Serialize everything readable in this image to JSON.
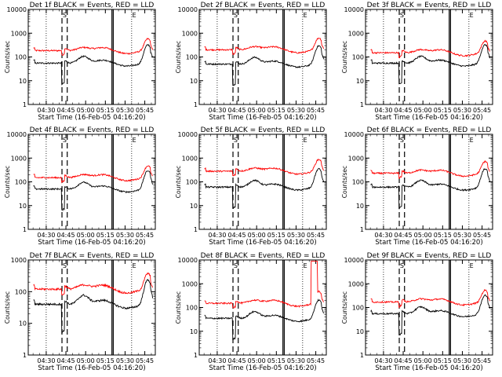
{
  "chart_data": [
    {
      "type": "line",
      "title": "Det 1f BLACK = Events, RED = LLD",
      "xlabel": "Start Time (16-Feb-05 04:16:20)",
      "ylabel": "Counts/sec",
      "yscale": "log",
      "ylim": [
        1,
        10000
      ],
      "y_ticks": [
        "1",
        "10",
        "100",
        "1000",
        "10000"
      ],
      "xlim": [
        "04:16:20",
        "05:53:00"
      ],
      "x_ticks": [
        "04:30",
        "04:45",
        "05:00",
        "05:15",
        "05:30",
        "05:45"
      ],
      "markers": {
        "dotted": [
          "04:30",
          "05:35"
        ],
        "dashed": [
          "04:42",
          "04:46"
        ],
        "solid": [
          "05:20",
          "05:21"
        ]
      },
      "letters": [
        {
          "text": "S",
          "at": "04:44"
        },
        {
          "text": "E",
          "at": "05:37"
        }
      ],
      "series": [
        {
          "color": "#ff0000",
          "kind": "lld",
          "base": 185,
          "spike": false
        },
        {
          "color": "#000000",
          "kind": "events",
          "base": 55,
          "spike": false
        }
      ]
    },
    {
      "type": "line",
      "title": "Det 2f BLACK = Events, RED = LLD",
      "xlabel": "Start Time (16-Feb-05 04:16:20)",
      "ylabel": "Counts/sec",
      "yscale": "log",
      "ylim": [
        1,
        10000
      ],
      "y_ticks": [
        "1",
        "10",
        "100",
        "1000",
        "10000"
      ],
      "xlim": [
        "04:16:20",
        "05:53:00"
      ],
      "x_ticks": [
        "04:30",
        "04:45",
        "05:00",
        "05:15",
        "05:30",
        "05:45"
      ],
      "markers": {
        "dotted": [
          "04:30",
          "05:35"
        ],
        "dashed": [
          "04:42",
          "04:46"
        ],
        "solid": [
          "05:20",
          "05:21"
        ]
      },
      "letters": [
        {
          "text": "S",
          "at": "04:44"
        },
        {
          "text": "E",
          "at": "05:37"
        }
      ],
      "series": [
        {
          "color": "#ff0000",
          "kind": "lld",
          "base": 200,
          "spike": false
        },
        {
          "color": "#000000",
          "kind": "events",
          "base": 50,
          "spike": false
        }
      ]
    },
    {
      "type": "line",
      "title": "Det 3f BLACK = Events, RED = LLD",
      "xlabel": "Start Time (16-Feb-05 04:16:20)",
      "ylabel": "Counts/sec",
      "yscale": "log",
      "ylim": [
        1,
        10000
      ],
      "y_ticks": [
        "1",
        "10",
        "100",
        "1000",
        "10000"
      ],
      "xlim": [
        "04:16:20",
        "05:53:00"
      ],
      "x_ticks": [
        "04:30",
        "04:45",
        "05:00",
        "05:15",
        "05:30",
        "05:45"
      ],
      "markers": {
        "dotted": [
          "04:30",
          "05:35"
        ],
        "dashed": [
          "04:42",
          "04:46"
        ],
        "solid": [
          "05:20",
          "05:21"
        ]
      },
      "letters": [
        {
          "text": "S",
          "at": "04:44"
        },
        {
          "text": "E",
          "at": "05:37"
        }
      ],
      "series": [
        {
          "color": "#ff0000",
          "kind": "lld",
          "base": 150,
          "spike": false
        },
        {
          "color": "#000000",
          "kind": "events",
          "base": 55,
          "spike": false
        }
      ]
    },
    {
      "type": "line",
      "title": "Det 4f BLACK = Events, RED = LLD",
      "xlabel": "Start Time (16-Feb-05 04:16:20)",
      "ylabel": "Counts/sec",
      "yscale": "log",
      "ylim": [
        1,
        10000
      ],
      "y_ticks": [
        "1",
        "10",
        "100",
        "1000",
        "10000"
      ],
      "xlim": [
        "04:16:20",
        "05:53:00"
      ],
      "x_ticks": [
        "04:30",
        "04:45",
        "05:00",
        "05:15",
        "05:30",
        "05:45"
      ],
      "markers": {
        "dotted": [
          "04:30",
          "05:35"
        ],
        "dashed": [
          "04:42",
          "04:46"
        ],
        "solid": [
          "05:20",
          "05:21"
        ]
      },
      "letters": [
        {
          "text": "S",
          "at": "04:44"
        },
        {
          "text": "E",
          "at": "05:37"
        }
      ],
      "series": [
        {
          "color": "#ff0000",
          "kind": "lld",
          "base": 150,
          "spike": false
        },
        {
          "color": "#000000",
          "kind": "events",
          "base": 50,
          "spike": false
        }
      ]
    },
    {
      "type": "line",
      "title": "Det 5f BLACK = Events, RED = LLD",
      "xlabel": "Start Time (16-Feb-05 04:16:20)",
      "ylabel": "Counts/sec",
      "yscale": "log",
      "ylim": [
        1,
        10000
      ],
      "y_ticks": [
        "1",
        "10",
        "100",
        "1000",
        "10000"
      ],
      "xlim": [
        "04:16:20",
        "05:53:00"
      ],
      "x_ticks": [
        "04:30",
        "04:45",
        "05:00",
        "05:15",
        "05:30",
        "05:45"
      ],
      "markers": {
        "dotted": [
          "04:30",
          "05:35"
        ],
        "dashed": [
          "04:42",
          "04:46"
        ],
        "solid": [
          "05:20",
          "05:21"
        ]
      },
      "letters": [
        {
          "text": "S",
          "at": "04:44"
        },
        {
          "text": "E",
          "at": "05:37"
        }
      ],
      "series": [
        {
          "color": "#ff0000",
          "kind": "lld",
          "base": 280,
          "spike": false
        },
        {
          "color": "#000000",
          "kind": "events",
          "base": 60,
          "spike": false
        }
      ]
    },
    {
      "type": "line",
      "title": "Det 6f BLACK = Events, RED = LLD",
      "xlabel": "Start Time (16-Feb-05 04:16:20)",
      "ylabel": "Counts/sec",
      "yscale": "log",
      "ylim": [
        1,
        10000
      ],
      "y_ticks": [
        "1",
        "10",
        "100",
        "1000",
        "10000"
      ],
      "xlim": [
        "04:16:20",
        "05:53:00"
      ],
      "x_ticks": [
        "04:30",
        "04:45",
        "05:00",
        "05:15",
        "05:30",
        "05:45"
      ],
      "markers": {
        "dotted": [
          "04:30",
          "05:35"
        ],
        "dashed": [
          "04:42",
          "04:46"
        ],
        "solid": [
          "05:20",
          "05:21"
        ]
      },
      "letters": [
        {
          "text": "S",
          "at": "04:44"
        },
        {
          "text": "E",
          "at": "05:37"
        }
      ],
      "series": [
        {
          "color": "#ff0000",
          "kind": "lld",
          "base": 230,
          "spike": false
        },
        {
          "color": "#000000",
          "kind": "events",
          "base": 60,
          "spike": false
        }
      ]
    },
    {
      "type": "line",
      "title": "Det 7f BLACK = Events, RED = LLD",
      "xlabel": "Start Time (16-Feb-05 04:16:20)",
      "ylabel": "Counts/sec",
      "yscale": "log",
      "ylim": [
        1,
        1000
      ],
      "y_ticks": [
        "1",
        "10",
        "100",
        "1000"
      ],
      "xlim": [
        "04:16:20",
        "05:53:00"
      ],
      "x_ticks": [
        "04:30",
        "04:45",
        "05:00",
        "05:15",
        "05:30",
        "05:45"
      ],
      "markers": {
        "dotted": [
          "04:30",
          "05:35"
        ],
        "dashed": [
          "04:42",
          "04:46"
        ],
        "solid": [
          "05:20",
          "05:21"
        ]
      },
      "letters": [
        {
          "text": "S",
          "at": "04:44"
        },
        {
          "text": "E",
          "at": "05:37"
        }
      ],
      "series": [
        {
          "color": "#ff0000",
          "kind": "lld",
          "base": 120,
          "spike": false
        },
        {
          "color": "#000000",
          "kind": "events",
          "base": 40,
          "spike": false
        }
      ]
    },
    {
      "type": "line",
      "title": "Det 8f BLACK = Events, RED = LLD",
      "xlabel": "Start Time (16-Feb-05 04:16:20)",
      "ylabel": "Counts/sec",
      "yscale": "log",
      "ylim": [
        1,
        10000
      ],
      "y_ticks": [
        "1",
        "10",
        "100",
        "1000",
        "10000"
      ],
      "xlim": [
        "04:16:20",
        "05:53:00"
      ],
      "x_ticks": [
        "04:30",
        "04:45",
        "05:00",
        "05:15",
        "05:30",
        "05:45"
      ],
      "markers": {
        "dotted": [
          "04:30",
          "05:35"
        ],
        "dashed": [
          "04:42",
          "04:46"
        ],
        "solid": [
          "05:20",
          "05:21"
        ]
      },
      "letters": [
        {
          "text": "S",
          "at": "04:44"
        },
        {
          "text": "E",
          "at": "05:37"
        }
      ],
      "series": [
        {
          "color": "#ff0000",
          "kind": "lld",
          "base": 150,
          "spike": true
        },
        {
          "color": "#000000",
          "kind": "events",
          "base": 35,
          "spike": false
        }
      ]
    },
    {
      "type": "line",
      "title": "Det 9f BLACK = Events, RED = LLD",
      "xlabel": "Start Time (16-Feb-05 04:16:20)",
      "ylabel": "Counts/sec",
      "yscale": "log",
      "ylim": [
        1,
        10000
      ],
      "y_ticks": [
        "1",
        "10",
        "100",
        "1000",
        "10000"
      ],
      "xlim": [
        "04:16:20",
        "05:53:00"
      ],
      "x_ticks": [
        "04:30",
        "04:45",
        "05:00",
        "05:15",
        "05:30",
        "05:45"
      ],
      "markers": {
        "dotted": [
          "04:30",
          "05:35"
        ],
        "dashed": [
          "04:42",
          "04:46"
        ],
        "solid": [
          "05:20",
          "05:21"
        ]
      },
      "letters": [
        {
          "text": "S",
          "at": "04:44"
        },
        {
          "text": "E",
          "at": "05:37"
        }
      ],
      "series": [
        {
          "color": "#ff0000",
          "kind": "lld",
          "base": 170,
          "spike": false
        },
        {
          "color": "#000000",
          "kind": "events",
          "base": 55,
          "spike": false
        }
      ]
    }
  ]
}
